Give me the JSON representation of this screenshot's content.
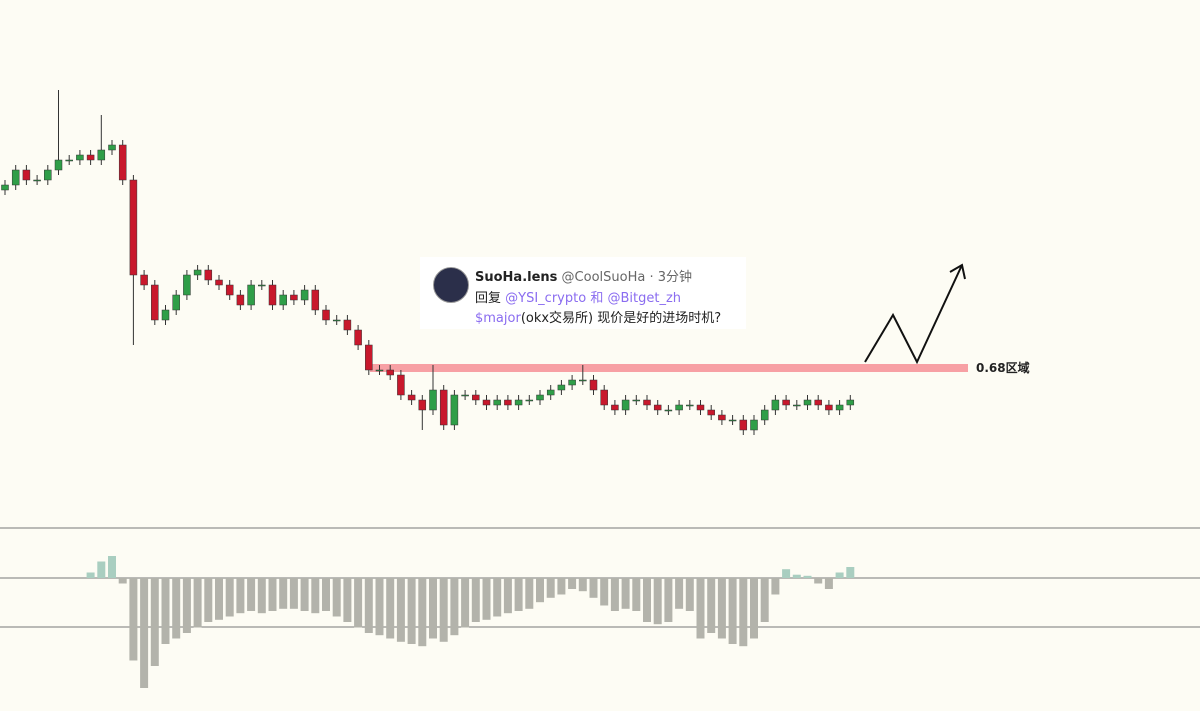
{
  "chart_data": {
    "type": "candlestick",
    "ylim": [
      0,
      104
    ],
    "open": [
      66,
      67,
      70,
      68,
      68,
      70,
      72,
      72,
      73,
      72,
      74,
      75,
      68,
      49,
      47,
      40,
      42,
      45,
      49,
      50,
      48,
      47,
      45,
      43,
      47,
      47,
      43,
      45,
      44,
      46,
      42,
      40,
      40,
      38,
      35,
      30,
      30,
      29,
      25,
      24,
      22,
      26,
      19,
      25,
      25,
      24,
      23,
      24,
      23,
      24,
      24,
      25,
      26,
      27,
      28,
      28,
      26,
      23,
      22,
      24,
      24,
      23,
      22,
      22,
      23,
      23,
      22,
      21,
      20,
      20,
      18,
      20,
      22,
      24,
      23,
      23,
      24,
      23,
      22,
      23
    ],
    "high": [
      68,
      71,
      71,
      69,
      71,
      86,
      73,
      74,
      74,
      81,
      76,
      76,
      69,
      50,
      48,
      43,
      46,
      50,
      51,
      51,
      49,
      48,
      46,
      48,
      48,
      48,
      46,
      46,
      47,
      47,
      43,
      41,
      41,
      39,
      36,
      31,
      31,
      30,
      26,
      25,
      31,
      27,
      26,
      26,
      26,
      25,
      25,
      25,
      25,
      25,
      26,
      27,
      28,
      29,
      31,
      29,
      27,
      24,
      25,
      25,
      25,
      24,
      23,
      24,
      24,
      24,
      23,
      22,
      21,
      21,
      21,
      23,
      25,
      25,
      24,
      25,
      25,
      24,
      24,
      25
    ],
    "low": [
      65,
      66,
      67,
      67,
      67,
      69,
      71,
      71,
      71,
      71,
      73,
      67,
      35,
      46,
      39,
      39,
      41,
      44,
      48,
      47,
      46,
      44,
      42,
      42,
      46,
      42,
      42,
      43,
      43,
      41,
      39,
      39,
      37,
      34,
      29,
      29,
      28,
      24,
      23,
      18,
      21,
      18,
      18,
      24,
      23,
      22,
      22,
      22,
      22,
      23,
      23,
      24,
      25,
      26,
      27,
      25,
      22,
      21,
      21,
      23,
      22,
      21,
      21,
      21,
      22,
      21,
      20,
      19,
      19,
      17,
      17,
      19,
      21,
      22,
      22,
      22,
      22,
      21,
      21,
      22
    ],
    "close": [
      67,
      70,
      68,
      68,
      70,
      72,
      72,
      73,
      72,
      74,
      75,
      68,
      49,
      47,
      40,
      42,
      45,
      49,
      50,
      48,
      47,
      45,
      43,
      47,
      47,
      43,
      45,
      44,
      46,
      42,
      40,
      40,
      38,
      35,
      30,
      30,
      29,
      25,
      24,
      22,
      26,
      19,
      25,
      25,
      24,
      23,
      24,
      23,
      24,
      24,
      25,
      26,
      27,
      28,
      28,
      26,
      23,
      22,
      24,
      24,
      23,
      22,
      22,
      23,
      23,
      22,
      21,
      20,
      20,
      18,
      20,
      22,
      24,
      23,
      23,
      24,
      23,
      22,
      23,
      24
    ],
    "up_color": "#2f9e48",
    "down_color": "#c8182c",
    "level": {
      "value": 30.4,
      "label": "0.68区域",
      "color": "#f7a0a4"
    },
    "histogram": {
      "ylim": [
        -120,
        50
      ],
      "pos_color": "#a9cec0",
      "neg_color": "#b3b3ab",
      "values": [
        null,
        null,
        null,
        null,
        null,
        null,
        null,
        null,
        5,
        15,
        20,
        -5,
        -75,
        -100,
        -80,
        -60,
        -55,
        -50,
        -45,
        -40,
        -38,
        -35,
        -32,
        -30,
        -32,
        -30,
        -28,
        -28,
        -30,
        -32,
        -30,
        -35,
        -40,
        -45,
        -50,
        -52,
        -55,
        -58,
        -60,
        -62,
        -55,
        -58,
        -52,
        -45,
        -40,
        -38,
        -35,
        -32,
        -30,
        -28,
        -22,
        -18,
        -15,
        -10,
        -12,
        -18,
        -25,
        -30,
        -28,
        -30,
        -40,
        -42,
        -40,
        -28,
        -30,
        -55,
        -50,
        -55,
        -60,
        -62,
        -55,
        -40,
        -15,
        8,
        3,
        2,
        -5,
        -10,
        5,
        10
      ]
    }
  },
  "tweet": {
    "name": "SuoHa.lens",
    "handle": "@CoolSuoHa · 3分钟",
    "reply": "回复",
    "mention1": "@YSI_crypto",
    "and": "和",
    "mention2": "@Bitget_zh",
    "ticker": "$major",
    "text": "(okx交易所) 现价是好的进场时机?"
  }
}
